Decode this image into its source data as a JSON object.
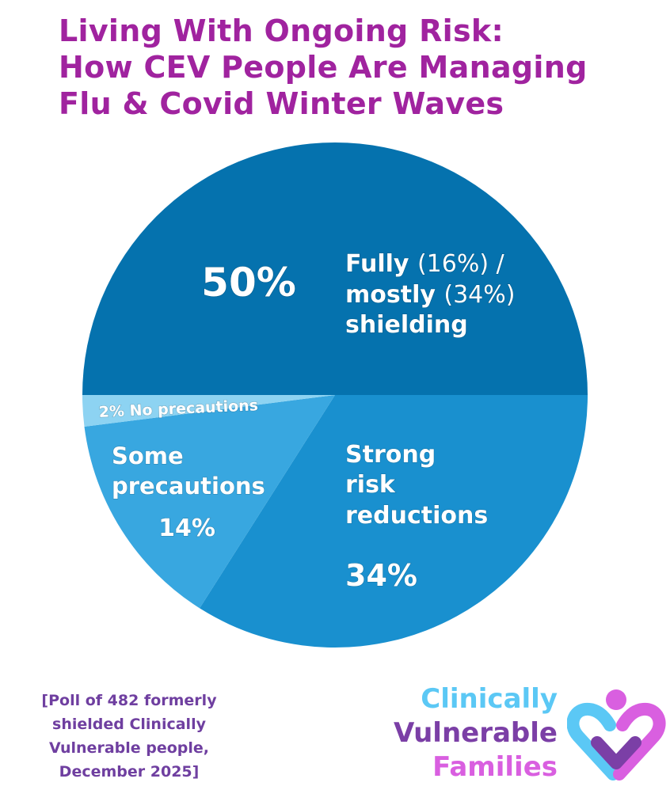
{
  "title": {
    "line1": "Living With Ongoing Risk:",
    "line2": "How  CEV  People  Are  Managing",
    "line3": "Flu & Covid Winter Waves"
  },
  "chart_data": {
    "type": "pie",
    "slices": [
      {
        "label": "Fully (16%) / mostly (34%) shielding",
        "value": 50,
        "color": "#0572ae"
      },
      {
        "label": "Strong risk reductions",
        "value": 34,
        "color": "#1990cf"
      },
      {
        "label": "Some precautions",
        "value": 14,
        "color": "#38a7e0"
      },
      {
        "label": "No precautions",
        "value": 2,
        "color": "#8dd3f2"
      }
    ]
  },
  "slice_labels": {
    "shielding_pct": "50%",
    "shielding_fully": "Fully",
    "shielding_fully_pct": "(16%) /",
    "shielding_mostly": "mostly",
    "shielding_mostly_pct": "(34%)",
    "shielding_word": "shielding",
    "strong_line1": "Strong",
    "strong_line2": "risk",
    "strong_line3": "reductions",
    "strong_pct": "34%",
    "some_line1": "Some",
    "some_line2": "precautions",
    "some_pct": "14%",
    "none_label": "2% No precautions"
  },
  "footnote": {
    "line1": "[Poll of 482 formerly",
    "line2": "shielded Clinically",
    "line3": "Vulnerable people,",
    "line4": "December 2025]"
  },
  "logo": {
    "word1": "Clinically",
    "word2": "Vulnerable",
    "word3": "Families",
    "colors": {
      "light_blue": "#5bc8f5",
      "purple": "#7b3fa6",
      "pink": "#d95fe0"
    }
  },
  "colors": {
    "title": "#a0239f",
    "footnote": "#6f3fa0"
  }
}
